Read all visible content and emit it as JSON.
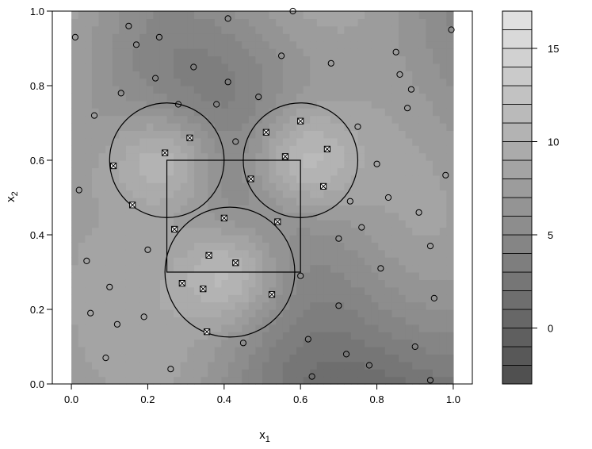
{
  "chart_data": {
    "type": "contour",
    "title": "",
    "xlabel": "x",
    "xlabel_sub": "1",
    "ylabel": "x",
    "ylabel_sub": "2",
    "xlim": [
      -0.05,
      1.05
    ],
    "ylim": [
      0.0,
      1.0
    ],
    "xticks": [
      0.0,
      0.2,
      0.4,
      0.6,
      0.8,
      1.0
    ],
    "xtick_labels": [
      "0.0",
      "0.2",
      "0.4",
      "0.6",
      "0.8",
      "1.0"
    ],
    "yticks": [
      0.0,
      0.2,
      0.4,
      0.6,
      0.8,
      1.0
    ],
    "ytick_labels": [
      "0.0",
      "0.2",
      "0.4",
      "0.6",
      "0.8",
      "1.0"
    ],
    "fill_color_low": "#505050",
    "fill_color_high": "#e8e8e8",
    "colorbar": {
      "range": [
        -3,
        17
      ],
      "levels": [
        -3,
        -2,
        -1,
        0,
        1,
        2,
        3,
        4,
        5,
        6,
        7,
        8,
        9,
        10,
        11,
        12,
        13,
        14,
        15,
        16,
        17
      ],
      "ticks": [
        0,
        5,
        10,
        15
      ],
      "tick_labels": [
        "0",
        "5",
        "10",
        "15"
      ]
    },
    "rectangle": {
      "x_min": 0.25,
      "x_max": 0.6,
      "y_min": 0.3,
      "y_max": 0.6
    },
    "circles": [
      {
        "cx": 0.25,
        "cy": 0.6,
        "r": 0.15
      },
      {
        "cx": 0.6,
        "cy": 0.6,
        "r": 0.15
      },
      {
        "cx": 0.415,
        "cy": 0.3,
        "r": 0.17
      }
    ],
    "series": [
      {
        "marker": "circle",
        "x": [
          0.01,
          0.15,
          0.17,
          0.23,
          0.41,
          0.58,
          0.995,
          0.13,
          0.22,
          0.32,
          0.38,
          0.41,
          0.49,
          0.55,
          0.68,
          0.85,
          0.86,
          0.89,
          0.88,
          0.06,
          0.28,
          0.43,
          0.75,
          0.02,
          0.8,
          0.83,
          0.98,
          0.73,
          0.91,
          0.7,
          0.76,
          0.2,
          0.04,
          0.81,
          0.1,
          0.6,
          0.05,
          0.19,
          0.12,
          0.7,
          0.45,
          0.62,
          0.72,
          0.09,
          0.9,
          0.26,
          0.78,
          0.63,
          0.94,
          0.95,
          0.94
        ],
        "y": [
          0.93,
          0.96,
          0.91,
          0.93,
          0.98,
          1.0,
          0.95,
          0.78,
          0.82,
          0.85,
          0.75,
          0.81,
          0.77,
          0.88,
          0.86,
          0.89,
          0.83,
          0.79,
          0.74,
          0.72,
          0.75,
          0.65,
          0.69,
          0.52,
          0.59,
          0.5,
          0.56,
          0.49,
          0.46,
          0.39,
          0.42,
          0.36,
          0.33,
          0.31,
          0.26,
          0.29,
          0.19,
          0.18,
          0.16,
          0.21,
          0.11,
          0.12,
          0.08,
          0.07,
          0.1,
          0.04,
          0.05,
          0.02,
          0.01,
          0.23,
          0.37
        ]
      },
      {
        "marker": "boxed-x",
        "x": [
          0.11,
          0.16,
          0.245,
          0.31,
          0.47,
          0.51,
          0.56,
          0.6,
          0.67,
          0.66,
          0.27,
          0.4,
          0.54,
          0.36,
          0.43,
          0.29,
          0.345,
          0.525,
          0.355
        ],
        "y": [
          0.585,
          0.48,
          0.62,
          0.66,
          0.55,
          0.675,
          0.61,
          0.705,
          0.63,
          0.53,
          0.415,
          0.445,
          0.435,
          0.345,
          0.325,
          0.27,
          0.255,
          0.24,
          0.14
        ]
      }
    ]
  }
}
